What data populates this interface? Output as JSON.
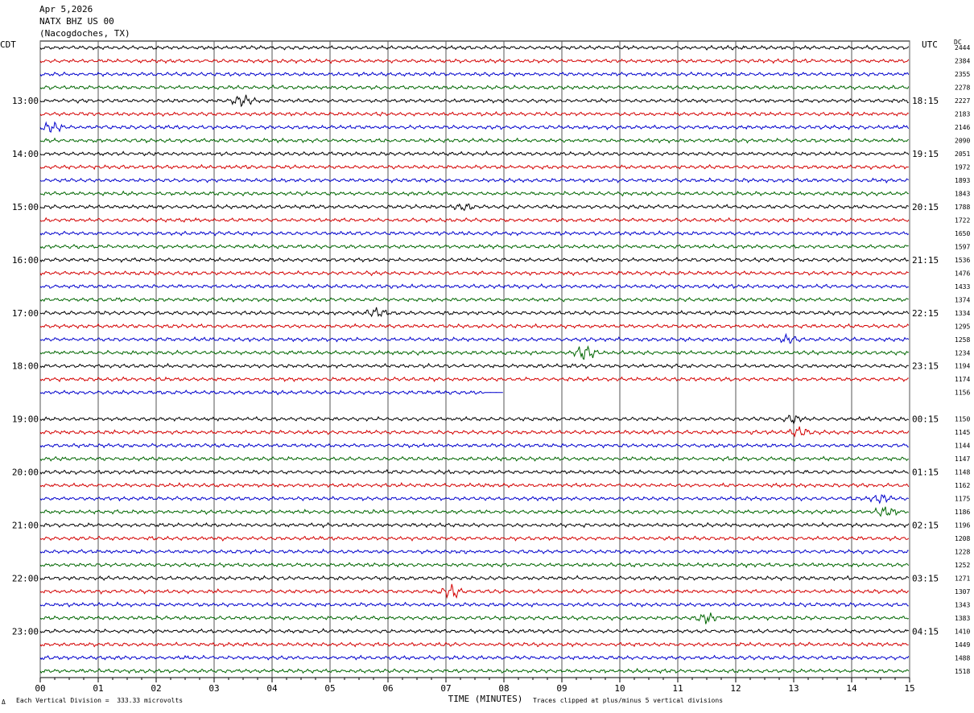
{
  "header": {
    "date": "Apr 5,2026",
    "station": "NATX BHZ US 00",
    "location": "(Nacogdoches, TX)"
  },
  "labels": {
    "left_timezone": "CDT",
    "right_timezone": "UTC",
    "dc_label": "DC"
  },
  "footer": {
    "xlabel": "TIME (MINUTES)",
    "scale_note": "Each Vertical Division =  333.33 microvolts",
    "clip_note": "Traces clipped at plus/minus 5 vertical divisions",
    "corner_mark": "Δ"
  },
  "colors": {
    "trace_cycle": [
      "#000000",
      "#d40000",
      "#0000cc",
      "#006600"
    ],
    "grid": "#555555"
  },
  "chart_data": {
    "type": "line",
    "title": "",
    "xlabel": "TIME (MINUTES)",
    "ylabel": "",
    "x_ticks": [
      "00",
      "01",
      "02",
      "03",
      "04",
      "05",
      "06",
      "07",
      "08",
      "09",
      "10",
      "11",
      "12",
      "13",
      "14",
      "15"
    ],
    "xlim": [
      0,
      15
    ],
    "left_time_labels": [
      "13:00",
      "14:00",
      "15:00",
      "16:00",
      "17:00",
      "18:00",
      "19:00",
      "20:00",
      "21:00",
      "22:00",
      "23:00"
    ],
    "right_time_labels": [
      "18:15",
      "19:15",
      "20:15",
      "21:15",
      "22:15",
      "23:15",
      "00:15",
      "01:15",
      "02:15",
      "03:15",
      "04:15"
    ],
    "dc_values": [
      "2444",
      "2384",
      "2355",
      "2278",
      "2227",
      "2183",
      "2146",
      "2090",
      "2051",
      "1972",
      "1893",
      "1843",
      "1788",
      "1722",
      "1650",
      "1597",
      "1536",
      "1476",
      "1433",
      "1374",
      "1334",
      "1295",
      "1258",
      "1234",
      "1194",
      "1174",
      "1156",
      "",
      "1150",
      "1145",
      "1144",
      "1147",
      "1148",
      "1162",
      "1175",
      "1186",
      "1196",
      "1208",
      "1228",
      "1252",
      "1271",
      "1307",
      "1343",
      "1383",
      "1410",
      "1449",
      "1488",
      "1518"
    ],
    "trace_end_minutes": [
      15,
      15,
      15,
      15,
      15,
      15,
      15,
      15,
      15,
      15,
      15,
      15,
      15,
      15,
      15,
      15,
      15,
      15,
      15,
      15,
      15,
      15,
      15,
      15,
      15,
      15,
      8,
      0,
      15,
      15,
      15,
      15,
      15,
      15,
      15,
      15,
      15,
      15,
      15,
      15,
      15,
      15,
      15,
      15,
      15,
      15,
      15,
      15
    ],
    "events": [
      {
        "trace": 4,
        "minute": 3.5,
        "amp": 2.0
      },
      {
        "trace": 6,
        "minute": 0.2,
        "amp": 2.0
      },
      {
        "trace": 12,
        "minute": 7.3,
        "amp": 1.6
      },
      {
        "trace": 20,
        "minute": 5.8,
        "amp": 2.0
      },
      {
        "trace": 22,
        "minute": 12.9,
        "amp": 1.4
      },
      {
        "trace": 23,
        "minute": 9.4,
        "amp": 3.0
      },
      {
        "trace": 28,
        "minute": 13.0,
        "amp": 1.6
      },
      {
        "trace": 29,
        "minute": 13.1,
        "amp": 2.0
      },
      {
        "trace": 34,
        "minute": 14.5,
        "amp": 1.6
      },
      {
        "trace": 35,
        "minute": 14.6,
        "amp": 2.0
      },
      {
        "trace": 41,
        "minute": 7.1,
        "amp": 3.0
      },
      {
        "trace": 43,
        "minute": 11.5,
        "amp": 2.0
      }
    ],
    "grid": true
  }
}
